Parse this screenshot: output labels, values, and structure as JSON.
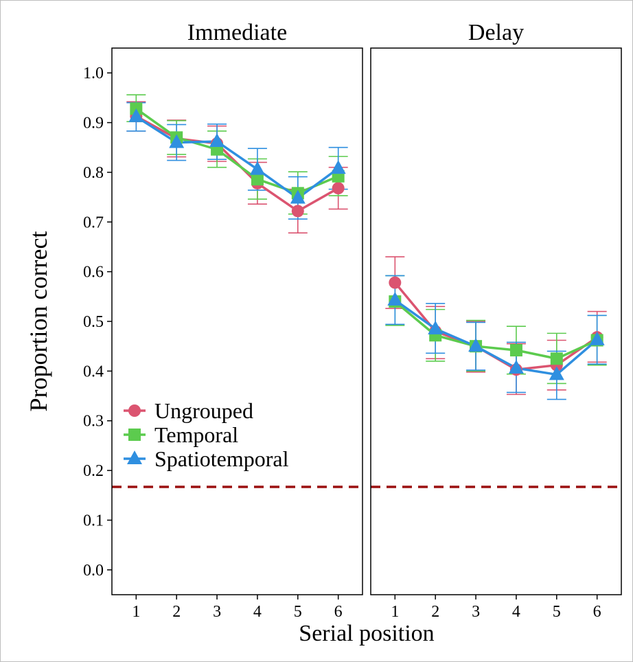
{
  "chart_data": {
    "type": "line",
    "ylabel": "Proportion correct",
    "xlabel": "Serial position",
    "ylim": [
      -0.05,
      1.05
    ],
    "yticks": [
      "0.0",
      "0.1",
      "0.2",
      "0.3",
      "0.4",
      "0.5",
      "0.6",
      "0.7",
      "0.8",
      "0.9",
      "1.0"
    ],
    "x": [
      1,
      2,
      3,
      4,
      5,
      6
    ],
    "chance_level": 0.167,
    "grid": false,
    "legend_position": "bottom-left of first panel",
    "legend": [
      {
        "name": "Ungrouped",
        "marker": "circle",
        "color": "#DB5470"
      },
      {
        "name": "Temporal",
        "marker": "square",
        "color": "#5CCB4E"
      },
      {
        "name": "Spatiotemporal",
        "marker": "triangle",
        "color": "#2F8FE0"
      }
    ],
    "panels": [
      {
        "title": "Immediate",
        "series": [
          {
            "name": "Ungrouped",
            "y": [
              0.913,
              0.868,
              0.858,
              0.778,
              0.722,
              0.768
            ],
            "err_low": [
              0.883,
              0.831,
              0.822,
              0.736,
              0.678,
              0.726
            ],
            "err_high": [
              0.942,
              0.905,
              0.893,
              0.82,
              0.766,
              0.81
            ]
          },
          {
            "name": "Temporal",
            "y": [
              0.928,
              0.87,
              0.846,
              0.786,
              0.758,
              0.792
            ],
            "err_low": [
              0.902,
              0.836,
              0.81,
              0.746,
              0.716,
              0.753
            ],
            "err_high": [
              0.956,
              0.904,
              0.883,
              0.827,
              0.801,
              0.832
            ]
          },
          {
            "name": "Spatiotemporal",
            "y": [
              0.912,
              0.86,
              0.862,
              0.806,
              0.748,
              0.808
            ],
            "err_low": [
              0.883,
              0.824,
              0.826,
              0.764,
              0.706,
              0.766
            ],
            "err_high": [
              0.94,
              0.896,
              0.897,
              0.848,
              0.791,
              0.85
            ]
          }
        ]
      },
      {
        "title": "Delay",
        "series": [
          {
            "name": "Ungrouped",
            "y": [
              0.578,
              0.48,
              0.45,
              0.403,
              0.412,
              0.468
            ],
            "err_low": [
              0.526,
              0.425,
              0.398,
              0.353,
              0.362,
              0.418
            ],
            "err_high": [
              0.63,
              0.53,
              0.5,
              0.455,
              0.462,
              0.52
            ]
          },
          {
            "name": "Temporal",
            "y": [
              0.54,
              0.472,
              0.45,
              0.442,
              0.425,
              0.462
            ],
            "err_low": [
              0.492,
              0.42,
              0.4,
              0.394,
              0.375,
              0.412
            ],
            "err_high": [
              0.592,
              0.524,
              0.502,
              0.49,
              0.476,
              0.512
            ]
          },
          {
            "name": "Spatiotemporal",
            "y": [
              0.543,
              0.485,
              0.45,
              0.406,
              0.393,
              0.463
            ],
            "err_low": [
              0.494,
              0.436,
              0.402,
              0.357,
              0.343,
              0.414
            ],
            "err_high": [
              0.592,
              0.536,
              0.498,
              0.458,
              0.44,
              0.512
            ]
          }
        ]
      }
    ]
  }
}
